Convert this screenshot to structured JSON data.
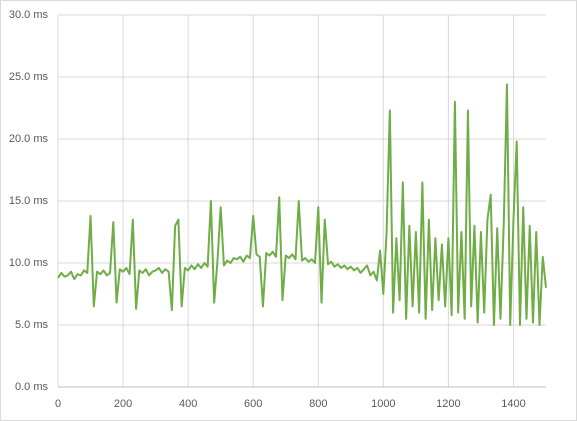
{
  "chart_data": {
    "type": "line",
    "x": [
      0,
      10,
      20,
      30,
      40,
      50,
      60,
      70,
      80,
      90,
      100,
      110,
      120,
      130,
      140,
      150,
      160,
      170,
      180,
      190,
      200,
      210,
      220,
      230,
      240,
      250,
      260,
      270,
      280,
      290,
      300,
      310,
      320,
      330,
      340,
      350,
      360,
      370,
      380,
      390,
      400,
      410,
      420,
      430,
      440,
      450,
      460,
      470,
      480,
      490,
      500,
      510,
      520,
      530,
      540,
      550,
      560,
      570,
      580,
      590,
      600,
      610,
      620,
      630,
      640,
      650,
      660,
      670,
      680,
      690,
      700,
      710,
      720,
      730,
      740,
      750,
      760,
      770,
      780,
      790,
      800,
      810,
      820,
      830,
      840,
      850,
      860,
      870,
      880,
      890,
      900,
      910,
      920,
      930,
      940,
      950,
      960,
      970,
      980,
      990,
      1000,
      1010,
      1020,
      1030,
      1040,
      1050,
      1060,
      1070,
      1080,
      1090,
      1100,
      1110,
      1120,
      1130,
      1140,
      1150,
      1160,
      1170,
      1180,
      1190,
      1200,
      1210,
      1220,
      1230,
      1240,
      1250,
      1260,
      1270,
      1280,
      1290,
      1300,
      1310,
      1320,
      1330,
      1340,
      1350,
      1360,
      1370,
      1380,
      1390,
      1400,
      1410,
      1420,
      1430,
      1440,
      1450,
      1460,
      1470,
      1480,
      1490,
      1500
    ],
    "series": [
      {
        "color": "#70ad47",
        "values": [
          8.8,
          9.2,
          8.9,
          9.0,
          9.3,
          8.7,
          9.1,
          9.0,
          9.4,
          9.2,
          13.8,
          6.5,
          9.3,
          9.1,
          9.4,
          9.0,
          9.2,
          13.3,
          6.8,
          9.5,
          9.3,
          9.6,
          9.1,
          13.5,
          6.3,
          9.4,
          9.2,
          9.5,
          9.0,
          9.3,
          9.4,
          9.6,
          9.2,
          9.5,
          9.3,
          6.2,
          13.0,
          13.5,
          6.5,
          9.6,
          9.4,
          9.8,
          9.5,
          9.9,
          9.6,
          10.0,
          9.7,
          15.0,
          6.8,
          10.1,
          14.5,
          9.8,
          10.2,
          10.0,
          10.4,
          10.3,
          10.5,
          10.1,
          10.6,
          10.4,
          13.8,
          10.7,
          10.5,
          6.5,
          10.8,
          10.6,
          10.9,
          10.5,
          15.3,
          7.0,
          10.6,
          10.4,
          10.7,
          10.3,
          15.0,
          10.2,
          10.4,
          10.1,
          10.3,
          10.0,
          14.5,
          6.8,
          13.5,
          9.9,
          10.1,
          9.7,
          9.9,
          9.6,
          9.8,
          9.5,
          9.7,
          9.4,
          9.6,
          9.2,
          9.5,
          9.8,
          9.0,
          9.3,
          8.6,
          11.0,
          7.5,
          12.5,
          22.3,
          6.0,
          12.0,
          7.0,
          16.5,
          5.5,
          13.0,
          6.5,
          12.5,
          6.0,
          16.5,
          5.5,
          13.5,
          6.2,
          12.0,
          7.0,
          11.5,
          6.5,
          12.0,
          5.8,
          23.0,
          6.0,
          12.5,
          5.5,
          22.3,
          6.5,
          13.0,
          5.2,
          12.5,
          6.0,
          13.5,
          15.5,
          5.0,
          12.8,
          5.5,
          13.0,
          24.4,
          5.0,
          13.5,
          19.8,
          5.0,
          14.5,
          5.5,
          13.0,
          5.2,
          12.5,
          5.0,
          10.5,
          8.0
        ]
      }
    ],
    "xlim": [
      0,
      1500
    ],
    "xticks": [
      0,
      200,
      400,
      600,
      800,
      1000,
      1200,
      1400
    ],
    "ylim": [
      0,
      30
    ],
    "yticks": [
      {
        "value": 0,
        "label": "0.0 ms"
      },
      {
        "value": 5,
        "label": "5.0 ms"
      },
      {
        "value": 10,
        "label": "10.0 ms"
      },
      {
        "value": 15,
        "label": "15.0 ms"
      },
      {
        "value": 20,
        "label": "20.0 ms"
      },
      {
        "value": 25,
        "label": "25.0 ms"
      },
      {
        "value": 30,
        "label": "30.0 ms"
      }
    ],
    "grid": true
  }
}
